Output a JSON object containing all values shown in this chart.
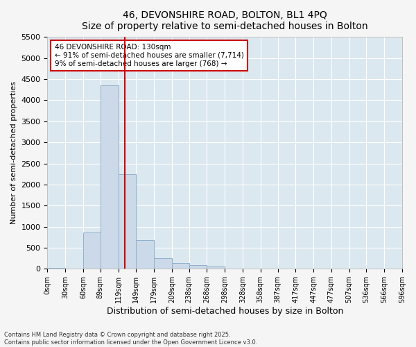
{
  "title_line1": "46, DEVONSHIRE ROAD, BOLTON, BL1 4PQ",
  "title_line2": "Size of property relative to semi-detached houses in Bolton",
  "xlabel": "Distribution of semi-detached houses by size in Bolton",
  "ylabel": "Number of semi-detached properties",
  "bar_left_edges": [
    0,
    30,
    60,
    89,
    119,
    149,
    179,
    209,
    238,
    268,
    298,
    328,
    358,
    387,
    417,
    447,
    477,
    507,
    536,
    566
  ],
  "bar_heights": [
    30,
    10,
    860,
    4350,
    2250,
    680,
    260,
    130,
    80,
    50,
    0,
    0,
    0,
    0,
    0,
    0,
    0,
    0,
    0,
    0
  ],
  "bar_widths": [
    30,
    30,
    29,
    30,
    30,
    30,
    30,
    29,
    30,
    30,
    30,
    30,
    29,
    30,
    30,
    30,
    30,
    29,
    30,
    30
  ],
  "bar_color": "#ccd9e8",
  "bar_edgecolor": "#8fb0cc",
  "tick_labels": [
    "0sqm",
    "30sqm",
    "60sqm",
    "89sqm",
    "119sqm",
    "149sqm",
    "179sqm",
    "209sqm",
    "238sqm",
    "268sqm",
    "298sqm",
    "328sqm",
    "358sqm",
    "387sqm",
    "417sqm",
    "447sqm",
    "477sqm",
    "507sqm",
    "536sqm",
    "566sqm",
    "596sqm"
  ],
  "tick_positions": [
    0,
    30,
    60,
    89,
    119,
    149,
    179,
    209,
    238,
    268,
    298,
    328,
    358,
    387,
    417,
    447,
    477,
    507,
    536,
    566,
    596
  ],
  "ylim": [
    0,
    5500
  ],
  "yticks": [
    0,
    500,
    1000,
    1500,
    2000,
    2500,
    3000,
    3500,
    4000,
    4500,
    5000,
    5500
  ],
  "xlim_max": 596,
  "vline_x": 130,
  "vline_color": "#cc0000",
  "annotation_title": "46 DEVONSHIRE ROAD: 130sqm",
  "annotation_line1": "← 91% of semi-detached houses are smaller (7,714)",
  "annotation_line2": "9% of semi-detached houses are larger (768) →",
  "bg_color": "#dce8f0",
  "grid_color": "#ffffff",
  "fig_bg_color": "#f5f5f5",
  "footer_line1": "Contains HM Land Registry data © Crown copyright and database right 2025.",
  "footer_line2": "Contains public sector information licensed under the Open Government Licence v3.0."
}
